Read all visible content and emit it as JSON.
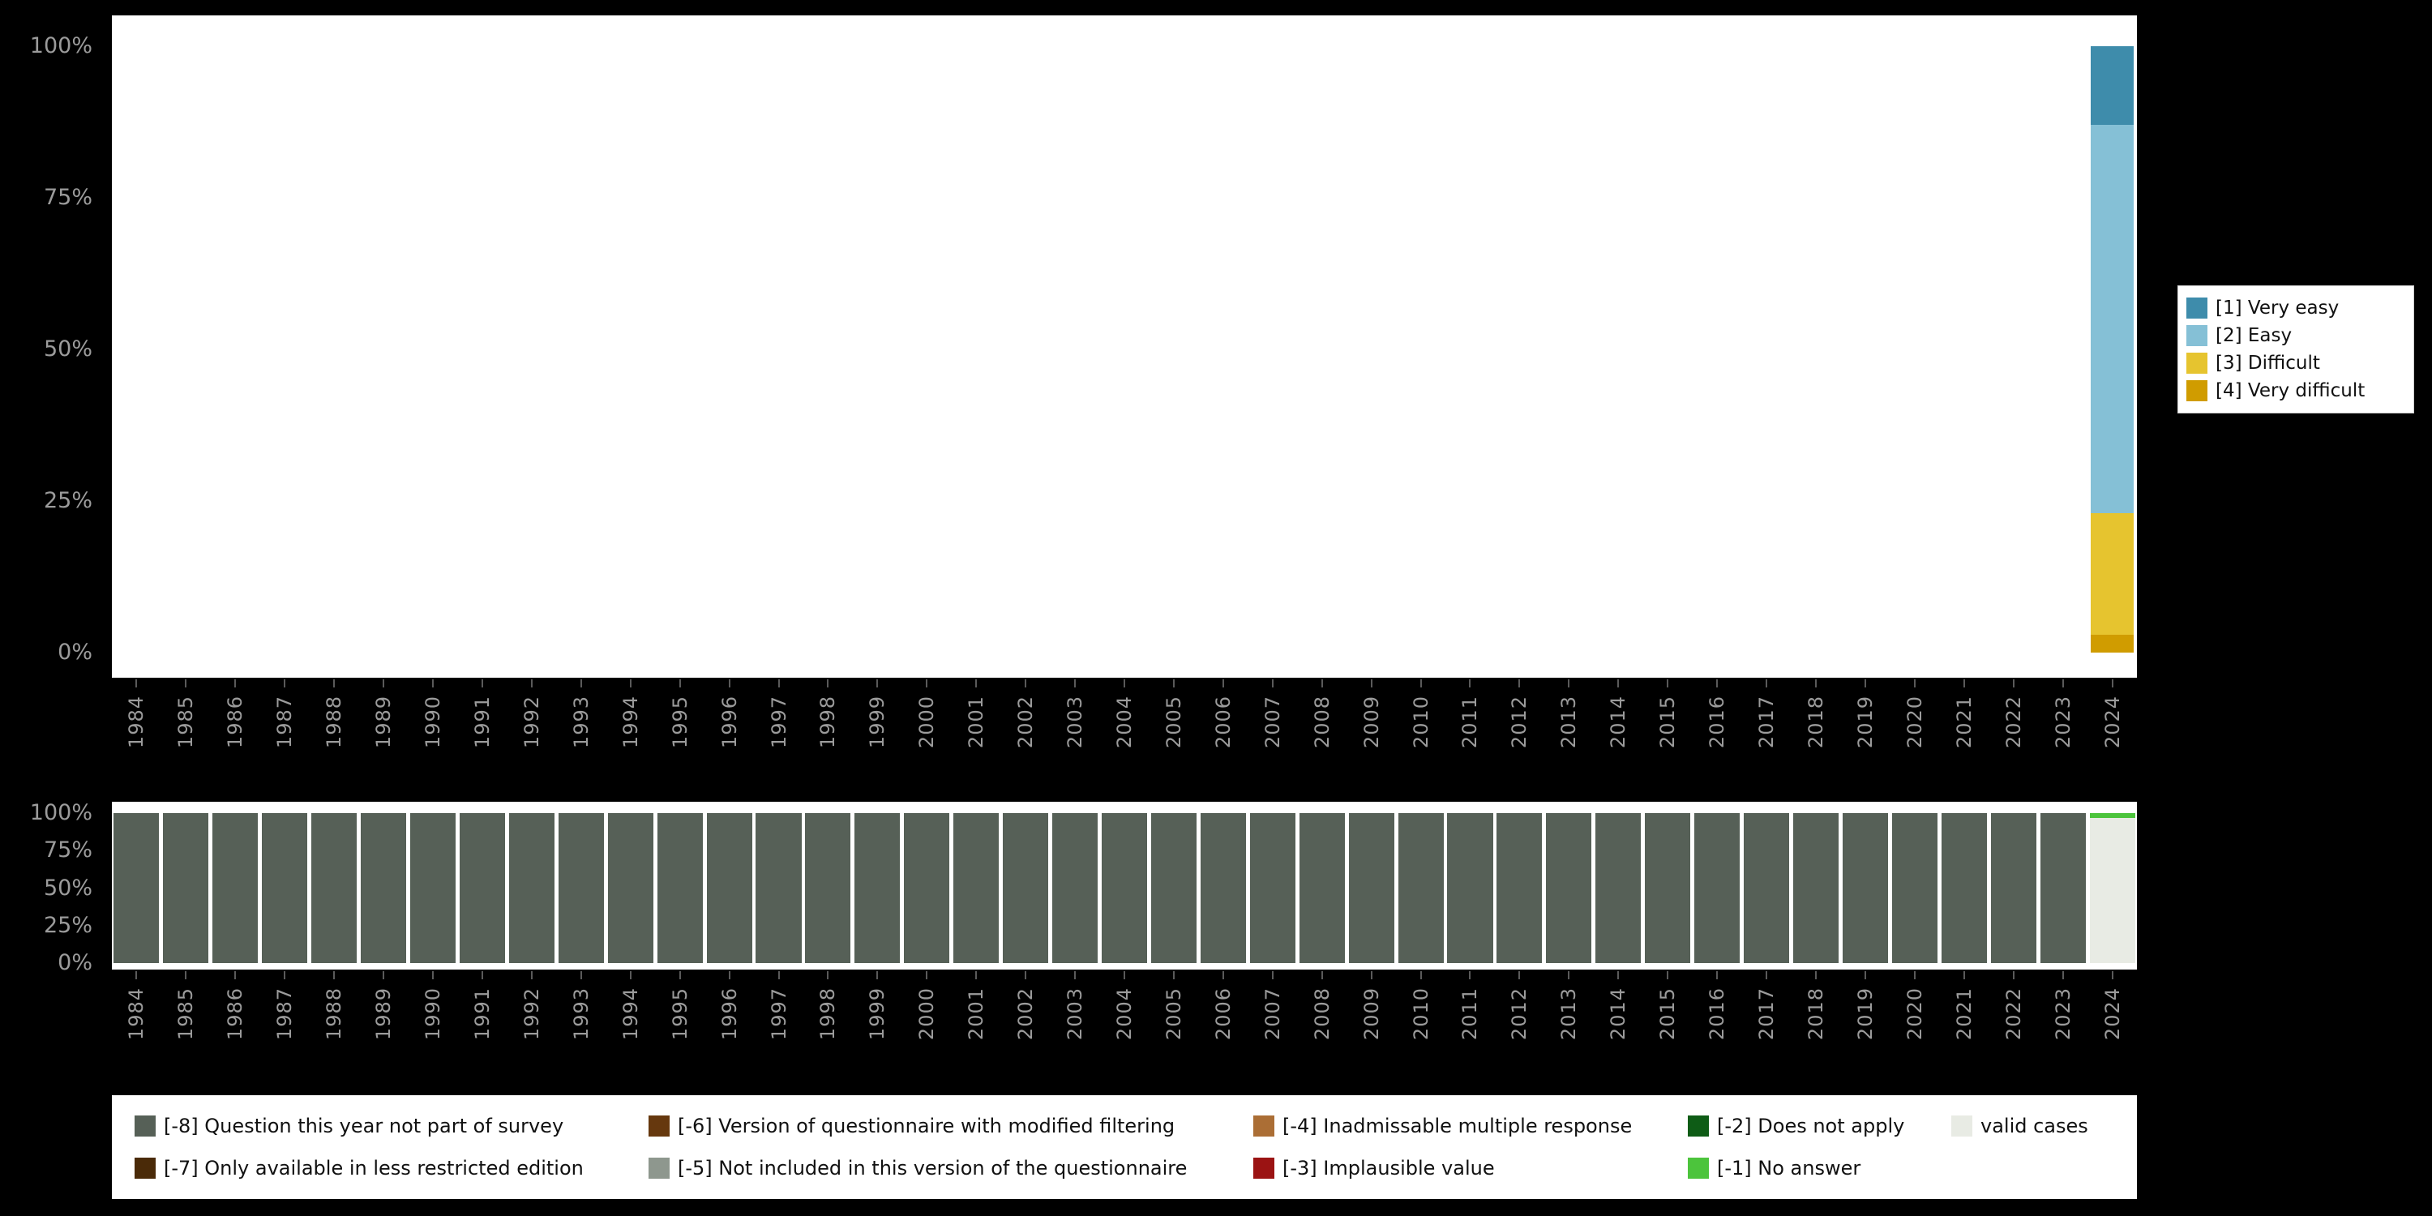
{
  "page": {
    "background": "#000000",
    "plot_background": "#ffffff",
    "axis_text_color": "#9b9b9b"
  },
  "chart_data": [
    {
      "id": "responses-by-year",
      "type": "bar",
      "stacked": true,
      "stack_order": "bottom-to-top",
      "title": "",
      "xlabel": "",
      "ylabel": "",
      "ylim": [
        0,
        100
      ],
      "unit": "%",
      "grid": false,
      "categories": [
        "1984",
        "1985",
        "1986",
        "1987",
        "1988",
        "1989",
        "1990",
        "1991",
        "1992",
        "1993",
        "1994",
        "1995",
        "1996",
        "1997",
        "1998",
        "1999",
        "2000",
        "2001",
        "2002",
        "2003",
        "2004",
        "2005",
        "2006",
        "2007",
        "2008",
        "2009",
        "2010",
        "2011",
        "2012",
        "2013",
        "2014",
        "2015",
        "2016",
        "2017",
        "2018",
        "2019",
        "2020",
        "2021",
        "2022",
        "2023",
        "2024"
      ],
      "yticks": [
        {
          "label": "100%",
          "value": 100
        },
        {
          "label": "75%",
          "value": 75
        },
        {
          "label": "50%",
          "value": 50
        },
        {
          "label": "25%",
          "value": 25
        },
        {
          "label": "0%",
          "value": 0
        }
      ],
      "series": [
        {
          "name": "[4] Very difficult",
          "color": "#d09c00",
          "values": {
            "2024": 3
          }
        },
        {
          "name": "[3] Difficult",
          "color": "#e6c42f",
          "values": {
            "2024": 20
          }
        },
        {
          "name": "[2] Easy",
          "color": "#85c0d6",
          "values": {
            "2024": 64
          }
        },
        {
          "name": "[1] Very easy",
          "color": "#3e8cab",
          "values": {
            "2024": 13
          }
        }
      ],
      "legend": {
        "position": "right",
        "items": [
          {
            "label": "[1] Very easy",
            "color": "#3e8cab"
          },
          {
            "label": "[2] Easy",
            "color": "#85c0d6"
          },
          {
            "label": "[3] Difficult",
            "color": "#e6c42f"
          },
          {
            "label": "[4] Very difficult",
            "color": "#d09c00"
          }
        ]
      }
    },
    {
      "id": "missing-values-by-year",
      "type": "bar",
      "stacked": true,
      "stack_order": "bottom-to-top",
      "title": "",
      "xlabel": "",
      "ylabel": "",
      "ylim": [
        0,
        100
      ],
      "unit": "%",
      "grid": false,
      "categories": [
        "1984",
        "1985",
        "1986",
        "1987",
        "1988",
        "1989",
        "1990",
        "1991",
        "1992",
        "1993",
        "1994",
        "1995",
        "1996",
        "1997",
        "1998",
        "1999",
        "2000",
        "2001",
        "2002",
        "2003",
        "2004",
        "2005",
        "2006",
        "2007",
        "2008",
        "2009",
        "2010",
        "2011",
        "2012",
        "2013",
        "2014",
        "2015",
        "2016",
        "2017",
        "2018",
        "2019",
        "2020",
        "2021",
        "2022",
        "2023",
        "2024"
      ],
      "yticks": [
        {
          "label": "100%",
          "value": 100
        },
        {
          "label": "75%",
          "value": 75
        },
        {
          "label": "50%",
          "value": 50
        },
        {
          "label": "25%",
          "value": 25
        },
        {
          "label": "0%",
          "value": 0
        }
      ],
      "series": [
        {
          "name": "valid cases",
          "color": "#e8ebe4",
          "values": {
            "2024": 97
          }
        },
        {
          "name": "[-8] Question this year not part of survey",
          "color": "#566057",
          "values": {
            "1984-2023": 100
          }
        },
        {
          "name": "[-1] No answer",
          "color": "#4cc43c",
          "values": {
            "2024": 3
          }
        }
      ],
      "legend": {
        "position": "bottom",
        "order": "column-major",
        "items": [
          {
            "label": "[-8] Question this year not part of survey",
            "color": "#566057"
          },
          {
            "label": "[-7] Only available in less restricted edition",
            "color": "#4a2a08"
          },
          {
            "label": "[-6] Version of questionnaire with modified filtering",
            "color": "#66380e"
          },
          {
            "label": "[-5] Not included in this version of the questionnaire",
            "color": "#8e978e"
          },
          {
            "label": "[-4] Inadmissable multiple response",
            "color": "#ab6e35"
          },
          {
            "label": "[-3] Implausible value",
            "color": "#9b1313"
          },
          {
            "label": "[-2] Does not apply",
            "color": "#0e5c16"
          },
          {
            "label": "[-1] No answer",
            "color": "#4cc43c"
          },
          {
            "label": "valid cases",
            "color": "#e8ebe4"
          }
        ]
      }
    }
  ]
}
